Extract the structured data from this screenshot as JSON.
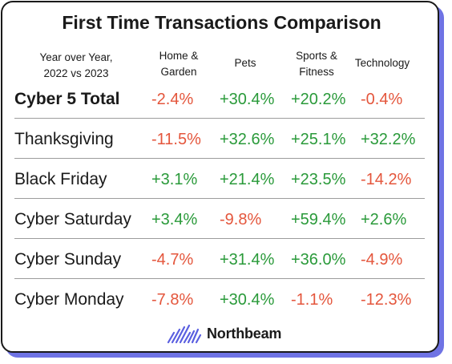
{
  "title": "First Time Transactions Comparison",
  "row_header": "Year over Year,\n2022 vs 2023",
  "brand": "Northbeam",
  "colors": {
    "positive": "#2a9a3a",
    "negative": "#e4563c",
    "shadow": "#6f73e4"
  },
  "chart_data": {
    "type": "table",
    "title": "First Time Transactions Comparison",
    "columns": [
      "Home &\nGarden",
      "Pets",
      "Sports &\nFitness",
      "Technology"
    ],
    "rows": [
      {
        "label": "Cyber 5 Total",
        "values": [
          "-2.4%",
          "+30.4%",
          "+20.2%",
          "-0.4%"
        ]
      },
      {
        "label": "Thanksgiving",
        "values": [
          "-11.5%",
          "+32.6%",
          "+25.1%",
          "+32.2%"
        ]
      },
      {
        "label": "Black Friday",
        "values": [
          "+3.1%",
          "+21.4%",
          "+23.5%",
          "-14.2%"
        ]
      },
      {
        "label": "Cyber Saturday",
        "values": [
          "+3.4%",
          "-9.8%",
          "+59.4%",
          "+2.6%"
        ]
      },
      {
        "label": "Cyber Sunday",
        "values": [
          "-4.7%",
          "+31.4%",
          "+36.0%",
          "-4.9%"
        ]
      },
      {
        "label": "Cyber Monday",
        "values": [
          "-7.8%",
          "+30.4%",
          "-1.1%",
          "-12.3%"
        ]
      }
    ]
  }
}
